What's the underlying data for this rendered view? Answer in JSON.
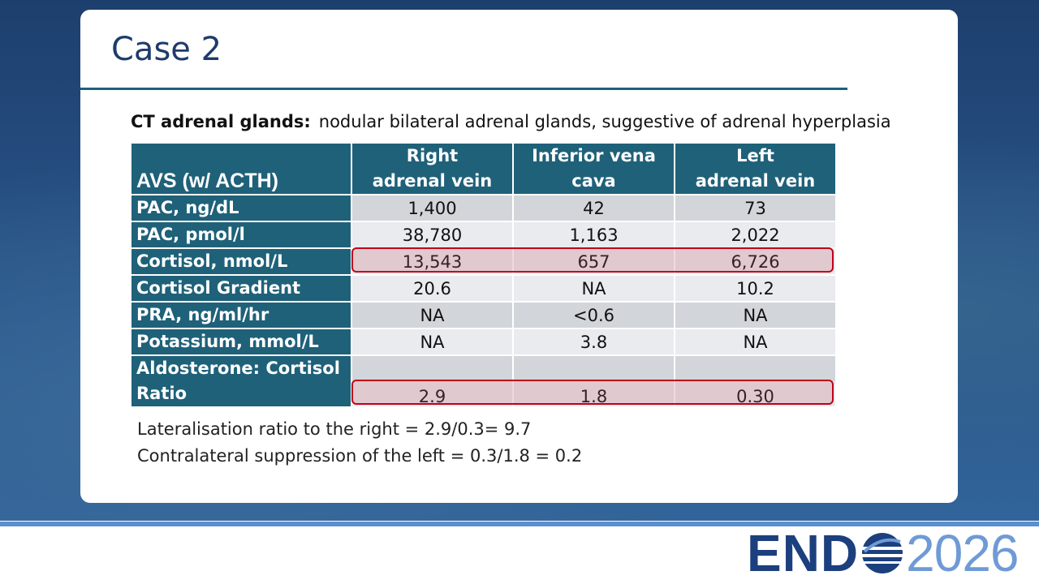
{
  "header": {
    "title": "Case 2"
  },
  "intro": {
    "label": "CT adrenal glands:",
    "text": "nodular bilateral adrenal glands, suggestive of adrenal hyperplasia"
  },
  "table": {
    "corner": "AVS (w/ ACTH)",
    "columns": [
      [
        "Right",
        "adrenal vein"
      ],
      [
        "Inferior vena",
        "cava"
      ],
      [
        "Left",
        "adrenal vein"
      ]
    ],
    "rows": [
      {
        "label": "PAC, ng/dL",
        "values": [
          "1,400",
          "42",
          "73"
        ]
      },
      {
        "label": "PAC, pmol/l",
        "values": [
          "38,780",
          "1,163",
          "2,022"
        ]
      },
      {
        "label": "Cortisol, nmol/L",
        "values": [
          "13,543",
          "657",
          "6,726"
        ]
      },
      {
        "label": "Cortisol Gradient",
        "values": [
          "20.6",
          "NA",
          "10.2"
        ]
      },
      {
        "label": "PRA, ng/ml/hr",
        "values": [
          "NA",
          "<0.6",
          "NA"
        ]
      },
      {
        "label": "Potassium, mmol/L",
        "values": [
          "NA",
          "3.8",
          "NA"
        ]
      },
      {
        "label": "Aldosterone: Cortisol Ratio",
        "values": [
          "2.9",
          "1.8",
          "0.30"
        ]
      }
    ]
  },
  "notes": [
    "Lateralisation ratio to the right = 2.9/0.3= 9.7",
    "Contralateral suppression of the left = 0.3/1.8 = 0.2"
  ],
  "logo": {
    "left": "END",
    "right": "2026"
  }
}
